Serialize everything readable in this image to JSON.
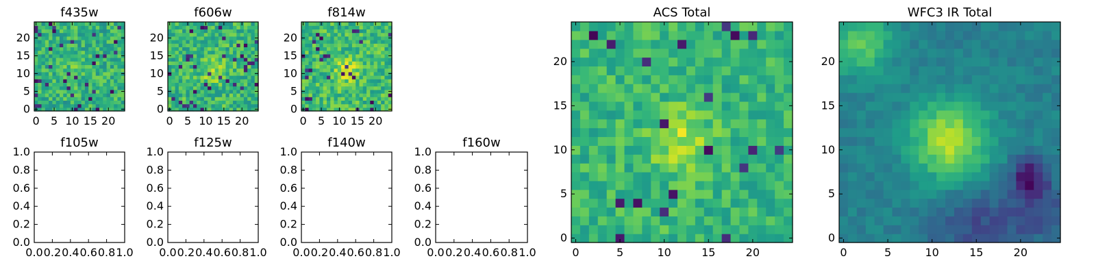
{
  "colormap": "viridis",
  "colormap_stops": [
    "#440154",
    "#482878",
    "#3e4989",
    "#31688e",
    "#26828e",
    "#1f9e89",
    "#35b779",
    "#6ece58",
    "#b5de2b",
    "#fde725"
  ],
  "chart_data": [
    {
      "title": "f435w",
      "type": "heatmap",
      "image_size": 25,
      "xlim": [
        -0.5,
        24.5
      ],
      "ylim": [
        -0.5,
        24.5
      ],
      "xticks": [
        0,
        5,
        10,
        15,
        20
      ],
      "yticks": [
        0,
        5,
        10,
        15,
        20
      ],
      "has_image": true,
      "noise_seed": 11,
      "blobs": [
        {
          "cx": 11,
          "cy": 11,
          "sigma": 2.5,
          "amp": 0.08
        }
      ],
      "base": 0.64,
      "noise": 0.16,
      "dark_rate": 0.05
    },
    {
      "title": "f606w",
      "type": "heatmap",
      "image_size": 25,
      "xlim": [
        -0.5,
        24.5
      ],
      "ylim": [
        -0.5,
        24.5
      ],
      "xticks": [
        0,
        5,
        10,
        15,
        20
      ],
      "yticks": [
        0,
        5,
        10,
        15,
        20
      ],
      "has_image": true,
      "noise_seed": 23,
      "blobs": [
        {
          "cx": 12,
          "cy": 11,
          "sigma": 2.5,
          "amp": 0.2
        }
      ],
      "base": 0.66,
      "noise": 0.16,
      "dark_rate": 0.05
    },
    {
      "title": "f814w",
      "type": "heatmap",
      "image_size": 25,
      "xlim": [
        -0.5,
        24.5
      ],
      "ylim": [
        -0.5,
        24.5
      ],
      "xticks": [
        0,
        5,
        10,
        15,
        20
      ],
      "yticks": [
        0,
        5,
        10,
        15,
        20
      ],
      "has_image": true,
      "noise_seed": 37,
      "blobs": [
        {
          "cx": 12,
          "cy": 11,
          "sigma": 2.2,
          "amp": 0.28
        }
      ],
      "base": 0.68,
      "noise": 0.16,
      "dark_rate": 0.05
    },
    {
      "title": "f105w",
      "type": "heatmap",
      "xlim": [
        0.0,
        1.0
      ],
      "ylim": [
        0.0,
        1.0
      ],
      "xticks": [
        "0.0",
        "0.2",
        "0.4",
        "0.6",
        "0.8",
        "1.0"
      ],
      "yticks": [
        "0.0",
        "0.2",
        "0.4",
        "0.6",
        "0.8",
        "1.0"
      ],
      "has_image": false
    },
    {
      "title": "f125w",
      "type": "heatmap",
      "xlim": [
        0.0,
        1.0
      ],
      "ylim": [
        0.0,
        1.0
      ],
      "xticks": [
        "0.0",
        "0.2",
        "0.4",
        "0.6",
        "0.8",
        "1.0"
      ],
      "yticks": [
        "0.0",
        "0.2",
        "0.4",
        "0.6",
        "0.8",
        "1.0"
      ],
      "has_image": false
    },
    {
      "title": "f140w",
      "type": "heatmap",
      "xlim": [
        0.0,
        1.0
      ],
      "ylim": [
        0.0,
        1.0
      ],
      "xticks": [
        "0.0",
        "0.2",
        "0.4",
        "0.6",
        "0.8",
        "1.0"
      ],
      "yticks": [
        "0.0",
        "0.2",
        "0.4",
        "0.6",
        "0.8",
        "1.0"
      ],
      "has_image": false
    },
    {
      "title": "f160w",
      "type": "heatmap",
      "xlim": [
        0.0,
        1.0
      ],
      "ylim": [
        0.0,
        1.0
      ],
      "xticks": [
        "0.0",
        "0.2",
        "0.4",
        "0.6",
        "0.8",
        "1.0"
      ],
      "yticks": [
        "0.0",
        "0.2",
        "0.4",
        "0.6",
        "0.8",
        "1.0"
      ],
      "has_image": false
    },
    {
      "title": "ACS Total",
      "type": "heatmap",
      "image_size": 25,
      "xlim": [
        -0.5,
        24.5
      ],
      "ylim": [
        -0.5,
        24.5
      ],
      "xticks": [
        0,
        5,
        10,
        15,
        20
      ],
      "yticks": [
        0,
        5,
        10,
        15,
        20
      ],
      "has_image": true,
      "noise_seed": 53,
      "blobs": [
        {
          "cx": 12,
          "cy": 11,
          "sigma": 2.5,
          "amp": 0.22
        }
      ],
      "base": 0.66,
      "noise": 0.13,
      "dark_rate": 0.035
    },
    {
      "title": "WFC3 IR Total",
      "type": "heatmap",
      "image_size": 25,
      "xlim": [
        -0.5,
        24.5
      ],
      "ylim": [
        -0.5,
        24.5
      ],
      "xticks": [
        0,
        5,
        10,
        15,
        20
      ],
      "yticks": [
        0,
        5,
        10,
        15,
        20
      ],
      "has_image": true,
      "noise_seed": 71,
      "blobs": [
        {
          "cx": 12,
          "cy": 11,
          "sigma": 3.2,
          "amp": 0.45
        },
        {
          "cx": 2,
          "cy": 22,
          "sigma": 2.5,
          "amp": 0.3
        },
        {
          "cx": 21,
          "cy": 7,
          "sigma": 1.5,
          "amp": -0.35
        },
        {
          "cx": 15,
          "cy": 1,
          "sigma": 3.5,
          "amp": -0.2
        },
        {
          "cx": 22,
          "cy": 3,
          "sigma": 2.5,
          "amp": -0.18
        }
      ],
      "base": 0.44,
      "noise": 0.06,
      "dark_rate": 0.0
    }
  ]
}
